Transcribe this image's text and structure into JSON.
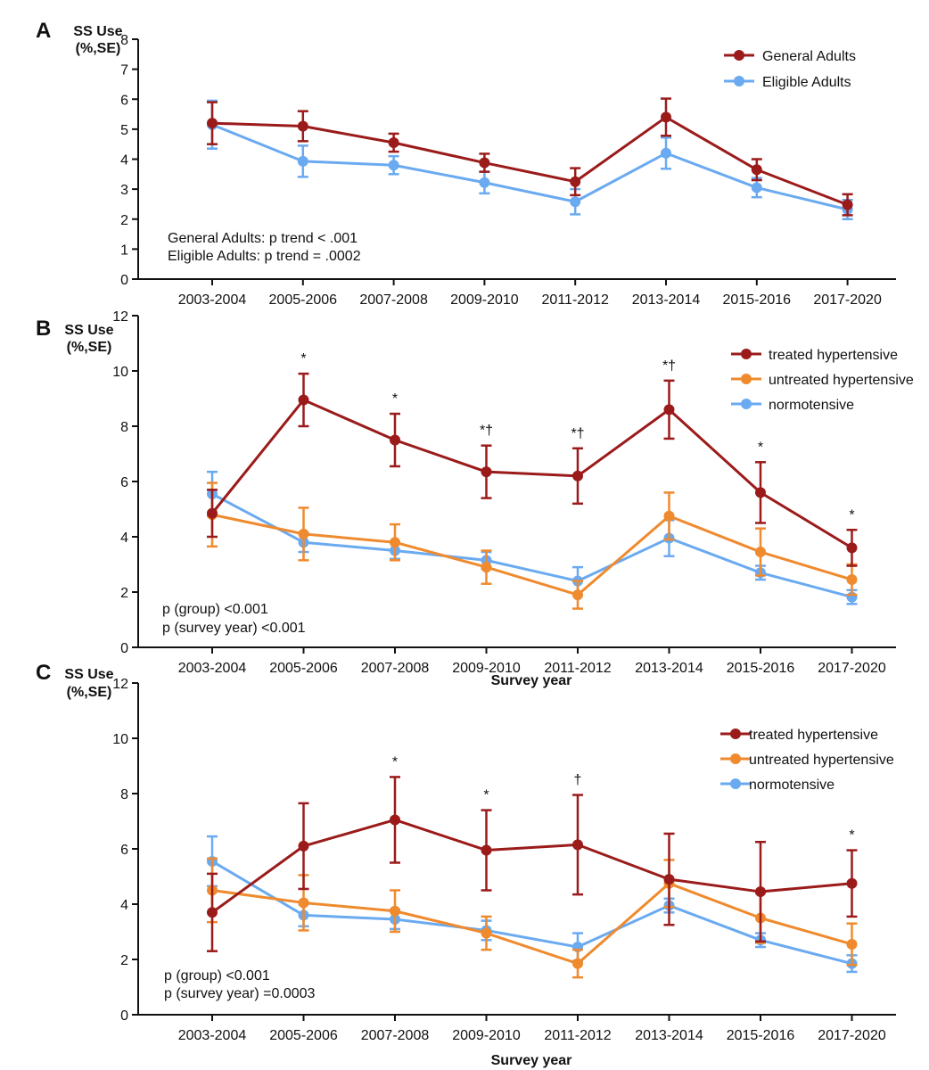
{
  "chart_data": [
    {
      "type": "line",
      "panel_label": "A",
      "ylabel_line1": "SS Use",
      "ylabel_line2": "(%,SE)",
      "xlabel": "",
      "ylim": [
        0,
        8
      ],
      "yticks": [
        0,
        1,
        2,
        3,
        4,
        5,
        6,
        7,
        8
      ],
      "categories": [
        "2003-2004",
        "2005-2006",
        "2007-2008",
        "2009-2010",
        "2011-2012",
        "2013-2014",
        "2015-2016",
        "2017-2020"
      ],
      "legend_position": "top-right",
      "series": [
        {
          "name": "General Adults",
          "color": "#9b1b1b",
          "values": [
            5.2,
            5.1,
            4.55,
            3.88,
            3.25,
            5.4,
            3.65,
            2.48
          ],
          "errors": [
            0.7,
            0.5,
            0.3,
            0.3,
            0.45,
            0.62,
            0.35,
            0.35
          ]
        },
        {
          "name": "Eligible Adults",
          "color": "#6aaaf0",
          "values": [
            5.15,
            3.93,
            3.8,
            3.22,
            2.58,
            4.2,
            3.05,
            2.32
          ],
          "errors": [
            0.8,
            0.52,
            0.3,
            0.36,
            0.42,
            0.52,
            0.32,
            0.32
          ]
        }
      ],
      "significance": [
        "",
        "",
        "",
        "",
        "",
        "",
        "",
        ""
      ],
      "notes": [
        "General Adults: p trend < .001",
        "Eligible Adults: p trend = .0002"
      ]
    },
    {
      "type": "line",
      "panel_label": "B",
      "ylabel_line1": "SS Use",
      "ylabel_line2": "(%,SE)",
      "xlabel": "Survey year",
      "ylim": [
        0,
        12
      ],
      "yticks": [
        0,
        2,
        4,
        6,
        8,
        10,
        12
      ],
      "categories": [
        "2003-2004",
        "2005-2006",
        "2007-2008",
        "2009-2010",
        "2011-2012",
        "2013-2014",
        "2015-2016",
        "2017-2020"
      ],
      "legend_position": "top-right",
      "series": [
        {
          "name": "treated hypertensive",
          "color": "#9b1b1b",
          "values": [
            4.85,
            8.95,
            7.5,
            6.35,
            6.2,
            8.6,
            5.6,
            3.6
          ],
          "errors": [
            0.85,
            0.95,
            0.95,
            0.95,
            1.0,
            1.05,
            1.1,
            0.65
          ]
        },
        {
          "name": "untreated hypertensive",
          "color": "#ef8a2e",
          "values": [
            4.8,
            4.1,
            3.8,
            2.9,
            1.9,
            4.75,
            3.45,
            2.45
          ],
          "errors": [
            1.15,
            0.95,
            0.65,
            0.6,
            0.5,
            0.85,
            0.85,
            0.55
          ]
        },
        {
          "name": "normotensive",
          "color": "#6aaaf0",
          "values": [
            5.55,
            3.8,
            3.5,
            3.15,
            2.4,
            3.95,
            2.7,
            1.82
          ],
          "errors": [
            0.8,
            0.35,
            0.3,
            0.3,
            0.5,
            0.65,
            0.25,
            0.25
          ]
        }
      ],
      "significance": [
        "",
        "*",
        "*",
        "*†",
        "*†",
        "*†",
        "*",
        "*"
      ],
      "notes": [
        "p (group) <0.001",
        "p (survey year) <0.001"
      ]
    },
    {
      "type": "line",
      "panel_label": "C",
      "ylabel_line1": "SS Use",
      "ylabel_line2": "(%,SE)",
      "xlabel": "Survey year",
      "ylim": [
        0,
        12
      ],
      "yticks": [
        0,
        2,
        4,
        6,
        8,
        10,
        12
      ],
      "categories": [
        "2003-2004",
        "2005-2006",
        "2007-2008",
        "2009-2010",
        "2011-2012",
        "2013-2014",
        "2015-2016",
        "2017-2020"
      ],
      "legend_position": "top-right",
      "series": [
        {
          "name": "treated hypertensive",
          "color": "#9b1b1b",
          "values": [
            3.7,
            6.1,
            7.05,
            5.95,
            6.15,
            4.9,
            4.45,
            4.75
          ],
          "errors": [
            1.4,
            1.55,
            1.55,
            1.45,
            1.8,
            1.65,
            1.8,
            1.2
          ]
        },
        {
          "name": "untreated hypertensive",
          "color": "#ef8a2e",
          "values": [
            4.5,
            4.05,
            3.75,
            2.95,
            1.85,
            4.75,
            3.5,
            2.55
          ],
          "errors": [
            1.15,
            1.0,
            0.75,
            0.6,
            0.5,
            0.85,
            0.9,
            0.75
          ]
        },
        {
          "name": "normotensive",
          "color": "#6aaaf0",
          "values": [
            5.55,
            3.6,
            3.45,
            3.05,
            2.45,
            3.95,
            2.7,
            1.85
          ],
          "errors": [
            0.9,
            0.4,
            0.35,
            0.35,
            0.5,
            0.25,
            0.25,
            0.3
          ]
        }
      ],
      "significance": [
        "",
        "",
        "*",
        "*",
        "†",
        "",
        "",
        "*"
      ],
      "notes": [
        "p (group) <0.001",
        "p (survey year) =0.0003"
      ]
    }
  ]
}
